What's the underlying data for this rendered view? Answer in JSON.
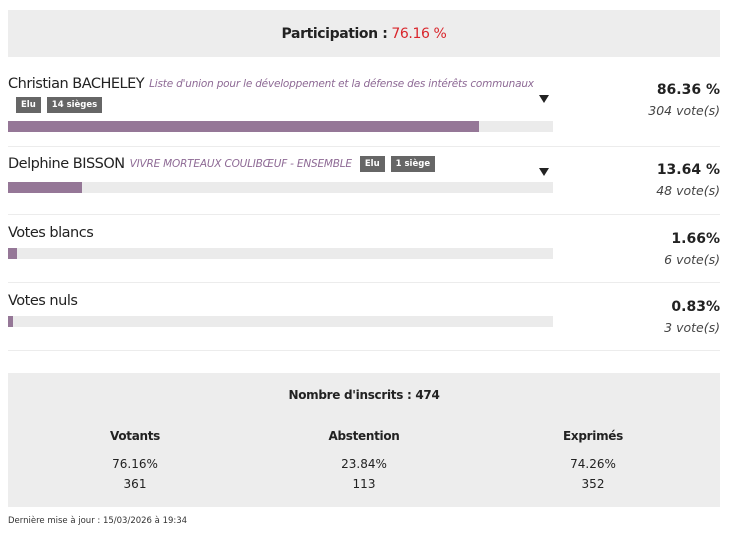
{
  "participation": {
    "label": "Participation :",
    "value": "76.16 %"
  },
  "results": [
    {
      "name": "Christian BACHELEY",
      "list": "Liste d'union pour le développement et la défense des intérêts communaux",
      "tags": [
        "Elu",
        "14 sièges"
      ],
      "share": {
        "value": 86.36,
        "label": "86.36 %"
      },
      "votes": "304 vote(s)"
    },
    {
      "name": "Delphine BISSON",
      "list": "VIVRE MORTEAUX COULIBŒUF - ENSEMBLE",
      "tags": [
        "Elu",
        "1 siège"
      ],
      "share": {
        "value": 13.64,
        "label": "13.64 %"
      },
      "votes": "48 vote(s)"
    },
    {
      "name": "Votes blancs",
      "share": {
        "value": 1.66,
        "label": "1.66%"
      },
      "votes": "6 vote(s)"
    },
    {
      "name": "Votes nuls",
      "share": {
        "value": 0.83,
        "label": "0.83%"
      },
      "votes": "3 vote(s)"
    }
  ],
  "summary": {
    "registered": "Nombre d'inscrits : 474",
    "columns": [
      {
        "title": "Votants",
        "percent": "76.16%",
        "count": "361"
      },
      {
        "title": "Abstention",
        "percent": "23.84%",
        "count": "113"
      },
      {
        "title": "Exprimés",
        "percent": "74.26%",
        "count": "352"
      }
    ]
  },
  "footer": "Dernière mise à jour : 15/03/2026 à 19:34"
}
